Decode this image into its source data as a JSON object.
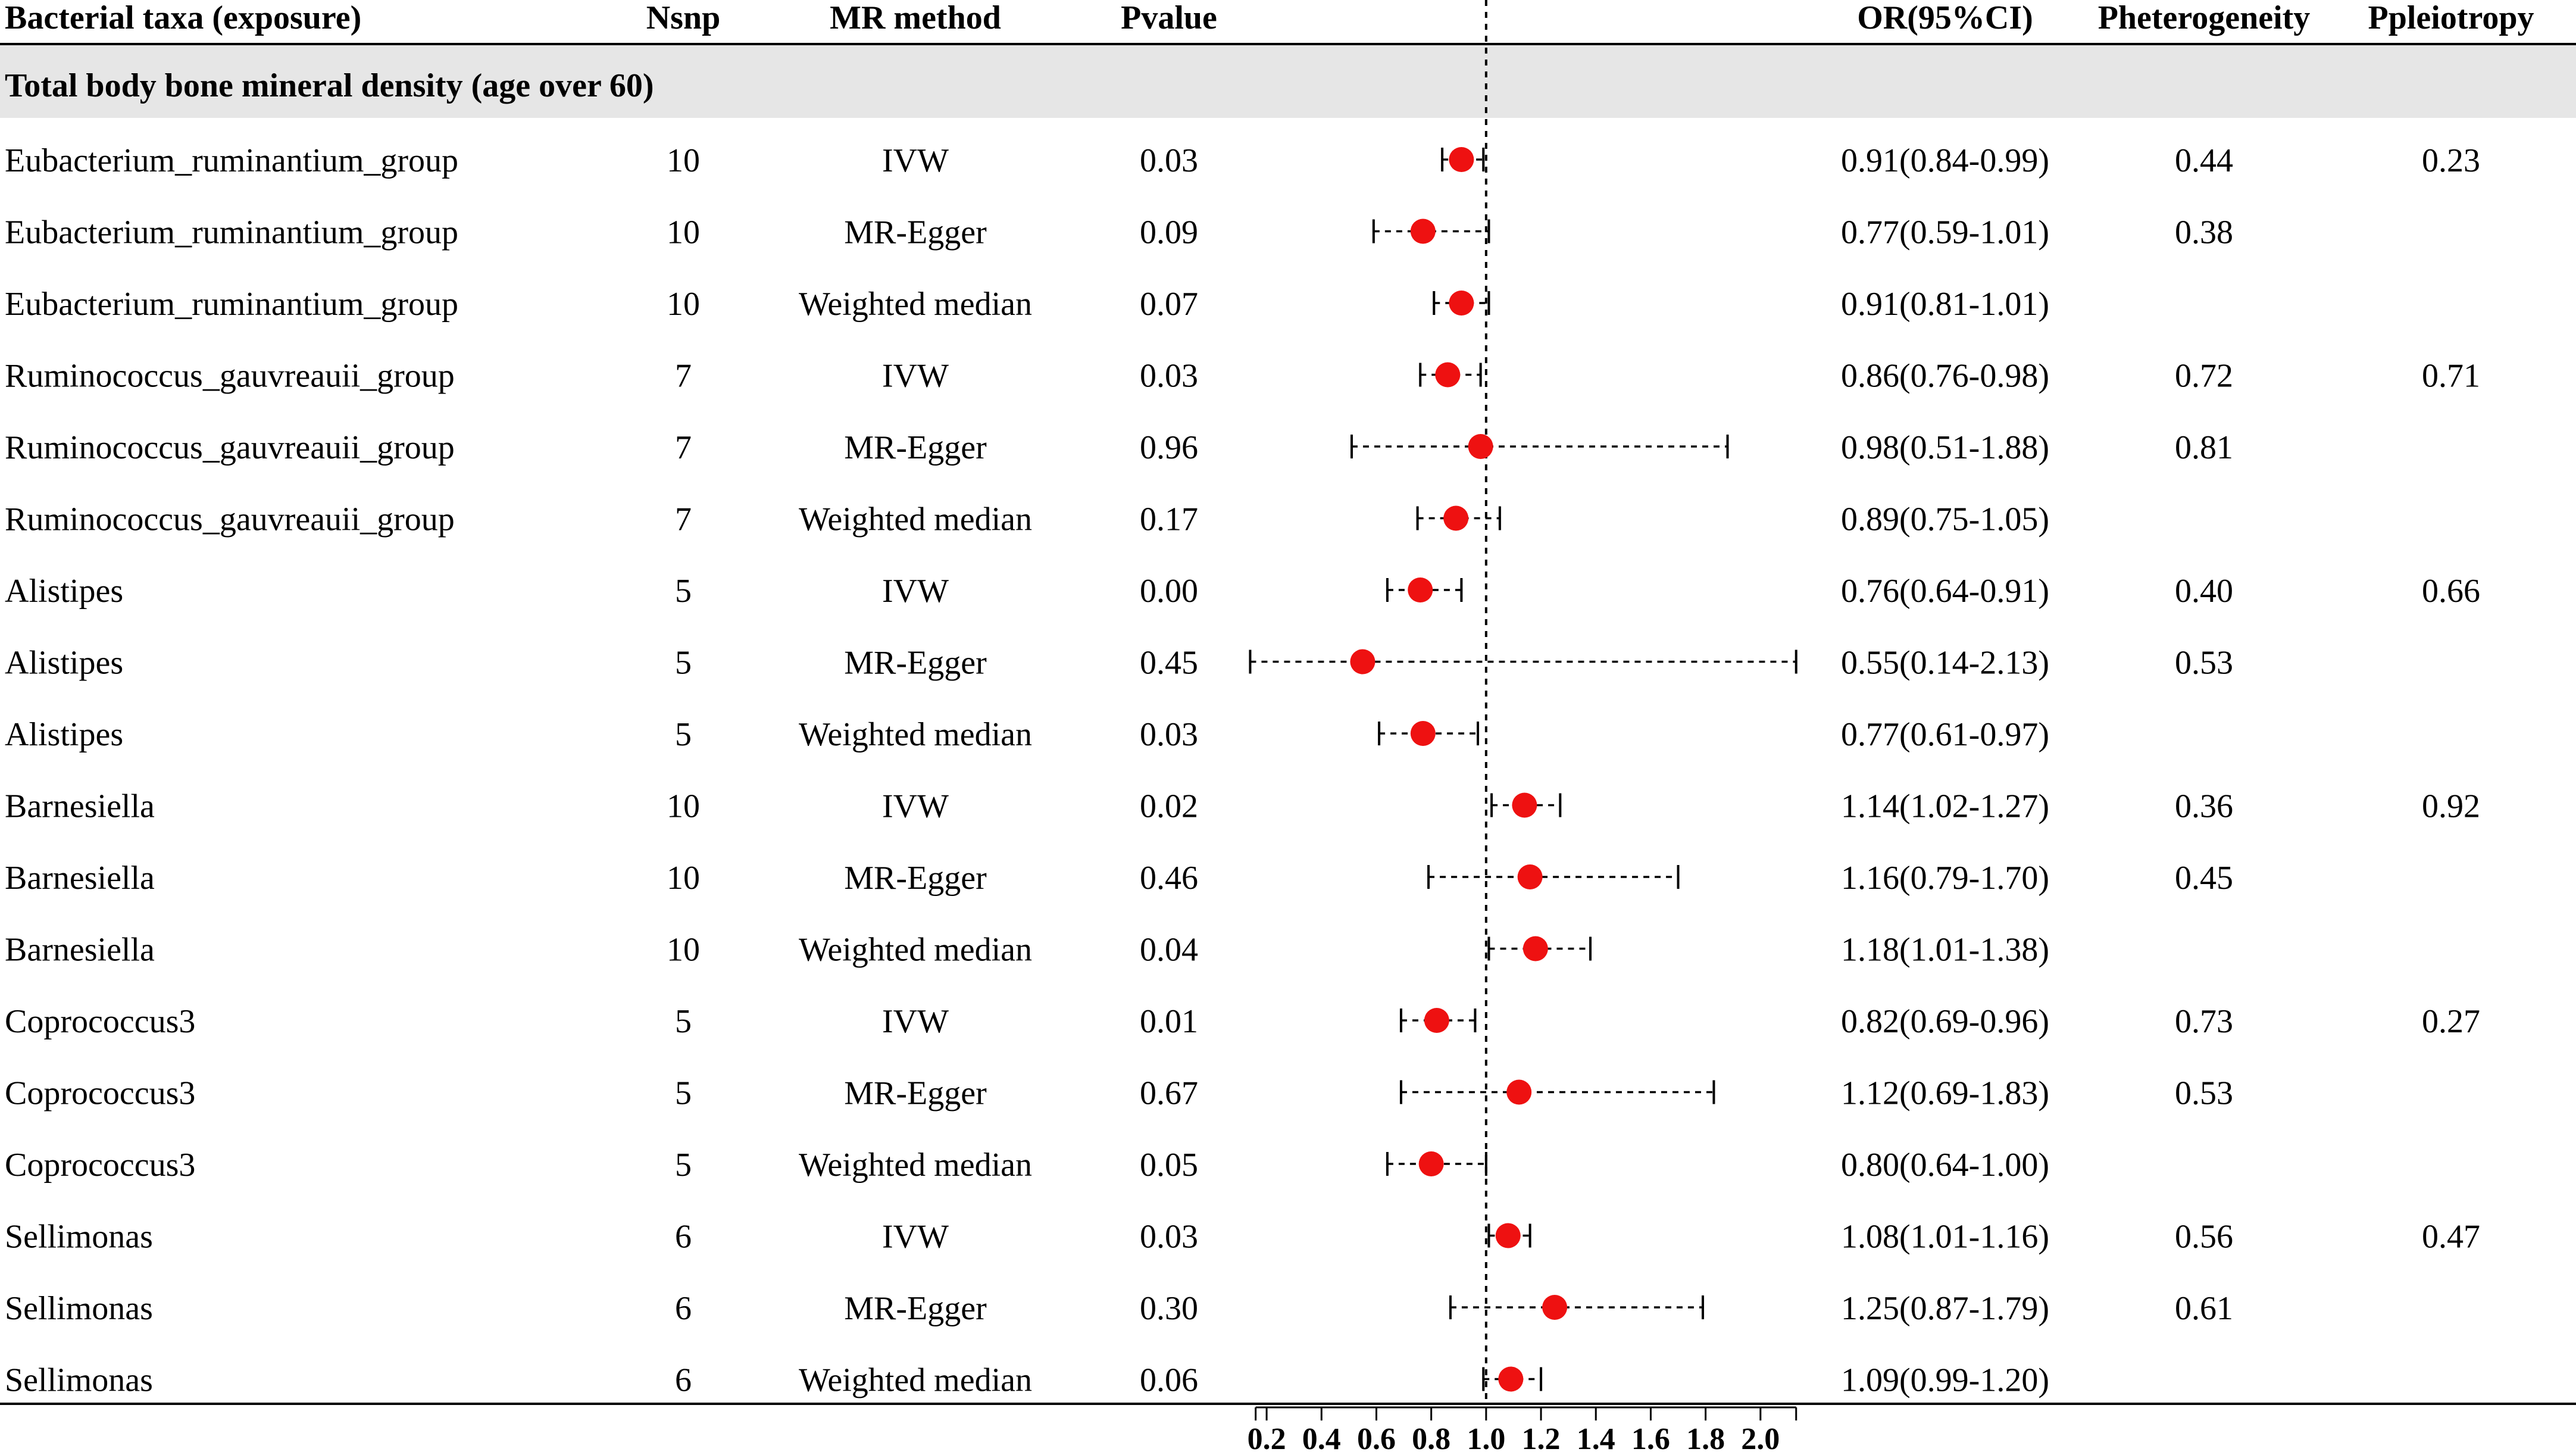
{
  "headers": {
    "taxa": "Bacterial taxa (exposure)",
    "nsnp": "Nsnp",
    "method": "MR method",
    "pvalue": "Pvalue",
    "or": "OR(95%CI)",
    "phet": "Pheterogeneity",
    "pple": "Ppleiotropy"
  },
  "subgroup": "Total body bone mineral density (age over 60)",
  "colors": {
    "point": "#ee1111",
    "band": "#e6e6e6"
  },
  "chart_data": {
    "type": "forest",
    "title": "",
    "xlabel": "",
    "xlim": [
      0.1,
      2.2
    ],
    "reference_line": 1.0,
    "ticks": [
      0.2,
      0.4,
      0.6,
      0.8,
      1.0,
      1.2,
      1.4,
      1.6,
      1.8,
      2.0
    ],
    "tick_labels": [
      "0.2",
      "0.4",
      "0.6",
      "0.8",
      "1.0",
      "1.2",
      "1.4",
      "1.6",
      "1.8",
      "2.0"
    ],
    "rows": [
      {
        "taxa": "Eubacterium_ruminantium_group",
        "nsnp": "10",
        "method": "IVW",
        "pvalue": "0.03",
        "or": 0.91,
        "lo": 0.84,
        "hi": 0.99,
        "or_text": "0.91(0.84-0.99)",
        "phet": "0.44",
        "pple": "0.23"
      },
      {
        "taxa": "Eubacterium_ruminantium_group",
        "nsnp": "10",
        "method": "MR-Egger",
        "pvalue": "0.09",
        "or": 0.77,
        "lo": 0.59,
        "hi": 1.01,
        "or_text": "0.77(0.59-1.01)",
        "phet": "0.38",
        "pple": ""
      },
      {
        "taxa": "Eubacterium_ruminantium_group",
        "nsnp": "10",
        "method": "Weighted median",
        "pvalue": "0.07",
        "or": 0.91,
        "lo": 0.81,
        "hi": 1.01,
        "or_text": "0.91(0.81-1.01)",
        "phet": "",
        "pple": ""
      },
      {
        "taxa": "Ruminococcus_gauvreauii_group",
        "nsnp": "7",
        "method": "IVW",
        "pvalue": "0.03",
        "or": 0.86,
        "lo": 0.76,
        "hi": 0.98,
        "or_text": "0.86(0.76-0.98)",
        "phet": "0.72",
        "pple": "0.71"
      },
      {
        "taxa": "Ruminococcus_gauvreauii_group",
        "nsnp": "7",
        "method": "MR-Egger",
        "pvalue": "0.96",
        "or": 0.98,
        "lo": 0.51,
        "hi": 1.88,
        "or_text": "0.98(0.51-1.88)",
        "phet": "0.81",
        "pple": ""
      },
      {
        "taxa": "Ruminococcus_gauvreauii_group",
        "nsnp": "7",
        "method": "Weighted median",
        "pvalue": "0.17",
        "or": 0.89,
        "lo": 0.75,
        "hi": 1.05,
        "or_text": "0.89(0.75-1.05)",
        "phet": "",
        "pple": ""
      },
      {
        "taxa": "Alistipes",
        "nsnp": "5",
        "method": "IVW",
        "pvalue": "0.00",
        "or": 0.76,
        "lo": 0.64,
        "hi": 0.91,
        "or_text": "0.76(0.64-0.91)",
        "phet": "0.40",
        "pple": "0.66"
      },
      {
        "taxa": "Alistipes",
        "nsnp": "5",
        "method": "MR-Egger",
        "pvalue": "0.45",
        "or": 0.55,
        "lo": 0.14,
        "hi": 2.13,
        "or_text": "0.55(0.14-2.13)",
        "phet": "0.53",
        "pple": ""
      },
      {
        "taxa": "Alistipes",
        "nsnp": "5",
        "method": "Weighted median",
        "pvalue": "0.03",
        "or": 0.77,
        "lo": 0.61,
        "hi": 0.97,
        "or_text": "0.77(0.61-0.97)",
        "phet": "",
        "pple": ""
      },
      {
        "taxa": "Barnesiella",
        "nsnp": "10",
        "method": "IVW",
        "pvalue": "0.02",
        "or": 1.14,
        "lo": 1.02,
        "hi": 1.27,
        "or_text": "1.14(1.02-1.27)",
        "phet": "0.36",
        "pple": "0.92"
      },
      {
        "taxa": "Barnesiella",
        "nsnp": "10",
        "method": "MR-Egger",
        "pvalue": "0.46",
        "or": 1.16,
        "lo": 0.79,
        "hi": 1.7,
        "or_text": "1.16(0.79-1.70)",
        "phet": "0.45",
        "pple": ""
      },
      {
        "taxa": "Barnesiella",
        "nsnp": "10",
        "method": "Weighted median",
        "pvalue": "0.04",
        "or": 1.18,
        "lo": 1.01,
        "hi": 1.38,
        "or_text": "1.18(1.01-1.38)",
        "phet": "",
        "pple": ""
      },
      {
        "taxa": "Coprococcus3",
        "nsnp": "5",
        "method": "IVW",
        "pvalue": "0.01",
        "or": 0.82,
        "lo": 0.69,
        "hi": 0.96,
        "or_text": "0.82(0.69-0.96)",
        "phet": "0.73",
        "pple": "0.27"
      },
      {
        "taxa": "Coprococcus3",
        "nsnp": "5",
        "method": "MR-Egger",
        "pvalue": "0.67",
        "or": 1.12,
        "lo": 0.69,
        "hi": 1.83,
        "or_text": "1.12(0.69-1.83)",
        "phet": "0.53",
        "pple": ""
      },
      {
        "taxa": "Coprococcus3",
        "nsnp": "5",
        "method": "Weighted median",
        "pvalue": "0.05",
        "or": 0.8,
        "lo": 0.64,
        "hi": 1.0,
        "or_text": "0.80(0.64-1.00)",
        "phet": "",
        "pple": ""
      },
      {
        "taxa": "Sellimonas",
        "nsnp": "6",
        "method": "IVW",
        "pvalue": "0.03",
        "or": 1.08,
        "lo": 1.01,
        "hi": 1.16,
        "or_text": "1.08(1.01-1.16)",
        "phet": "0.56",
        "pple": "0.47"
      },
      {
        "taxa": "Sellimonas",
        "nsnp": "6",
        "method": "MR-Egger",
        "pvalue": "0.30",
        "or": 1.25,
        "lo": 0.87,
        "hi": 1.79,
        "or_text": "1.25(0.87-1.79)",
        "phet": "0.61",
        "pple": ""
      },
      {
        "taxa": "Sellimonas",
        "nsnp": "6",
        "method": "Weighted median",
        "pvalue": "0.06",
        "or": 1.09,
        "lo": 0.99,
        "hi": 1.2,
        "or_text": "1.09(0.99-1.20)",
        "phet": "",
        "pple": ""
      }
    ]
  }
}
